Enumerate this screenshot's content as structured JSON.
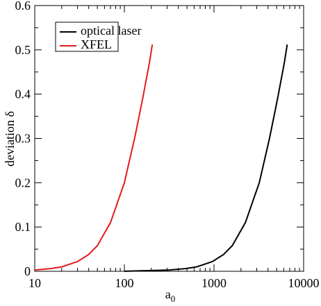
{
  "chart_data": {
    "type": "line",
    "xlabel": {
      "base": "a",
      "sub": "0"
    },
    "ylabel": "deviation δ",
    "xlog": true,
    "xlim": [
      10,
      10000
    ],
    "xticks": [
      10,
      100,
      1000,
      10000
    ],
    "xminorticks": [
      20,
      30,
      40,
      50,
      60,
      70,
      80,
      90,
      200,
      300,
      400,
      500,
      600,
      700,
      800,
      900,
      2000,
      3000,
      4000,
      5000,
      6000,
      7000,
      8000,
      9000
    ],
    "ylim": [
      0,
      0.6
    ],
    "yticks": [
      0,
      0.1,
      0.2,
      0.3,
      0.4,
      0.5,
      0.6
    ],
    "yminorticks": [
      0.05,
      0.15,
      0.25,
      0.35,
      0.45,
      0.55
    ],
    "legend": "top-left",
    "series": [
      {
        "name": "optical laser",
        "color": "#000000",
        "x": [
          100,
          320,
          480,
          640,
          960,
          1280,
          1600,
          2240,
          3200,
          4160,
          5120,
          6080,
          6560
        ],
        "values": [
          0.0002,
          0.003,
          0.006,
          0.01,
          0.022,
          0.038,
          0.058,
          0.11,
          0.2,
          0.3,
          0.39,
          0.47,
          0.512
        ]
      },
      {
        "name": "XFEL",
        "color": "#e41a1c",
        "x": [
          10,
          15,
          20,
          30,
          40,
          50,
          70,
          100,
          130,
          160,
          190,
          205
        ],
        "values": [
          0.003,
          0.006,
          0.01,
          0.022,
          0.038,
          0.058,
          0.11,
          0.2,
          0.3,
          0.39,
          0.47,
          0.512
        ]
      }
    ]
  }
}
